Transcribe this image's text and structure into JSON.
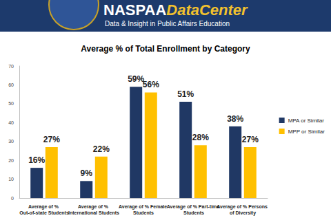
{
  "header": {
    "brand": "NASPAA",
    "brand_suffix": "DataCenter",
    "tagline": "Data & Insight in Public Affairs Education"
  },
  "chart_data": {
    "type": "bar",
    "title": "Average % of Total Enrollment by Category",
    "categories": [
      "Average of % Out-of-state Students",
      "Average of % International Students",
      "Average of % Female Students",
      "Average of % Part-time Students",
      "Average of % Persons of Diversity"
    ],
    "series": [
      {
        "name": "MPA or Similar",
        "color": "#203864",
        "values": [
          16,
          9,
          59,
          51,
          38
        ],
        "value_labels": [
          "16%",
          "9%",
          "59%",
          "51%",
          "38%"
        ]
      },
      {
        "name": "MPP or Similar",
        "color": "#ffc000",
        "values": [
          27,
          22,
          56,
          28,
          27
        ],
        "value_labels": [
          "27%",
          "22%",
          "56%",
          "28%",
          "27%"
        ]
      }
    ],
    "ylim": [
      0,
      70
    ],
    "yticks": [
      0,
      10,
      20,
      30,
      40,
      50,
      60,
      70
    ],
    "grid": false,
    "legend": "right",
    "data_labels": true
  }
}
